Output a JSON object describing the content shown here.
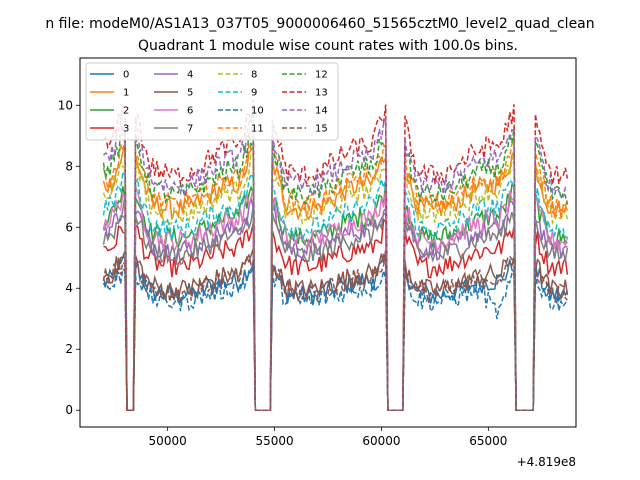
{
  "chart_data": {
    "type": "line",
    "suptitle": "n file: modeM0/AS1A13_037T05_9000006460_51565cztM0_level2_quad_clean",
    "title": "Quadrant 1 module wise count rates with 100.0s bins.",
    "xlabel": "",
    "ylabel": "",
    "x_offset_label": "+4.819e8",
    "xlim": [
      45900,
      69100
    ],
    "ylim": [
      -0.55,
      11.55
    ],
    "x_ticks": [
      50000,
      55000,
      60000,
      65000
    ],
    "x_tick_labels": [
      "50000",
      "55000",
      "60000",
      "65000"
    ],
    "y_ticks": [
      0,
      2,
      4,
      6,
      8,
      10
    ],
    "y_tick_labels": [
      "0",
      "2",
      "4",
      "6",
      "8",
      "10"
    ],
    "grid": false,
    "legend": {
      "position": "top-left",
      "columns": 4
    },
    "gaps": [
      {
        "start": 48050,
        "end": 48450
      },
      {
        "start": 54050,
        "end": 54850
      },
      {
        "start": 60250,
        "end": 61000
      },
      {
        "start": 66250,
        "end": 67150
      }
    ],
    "data_start": 47000,
    "data_end": 68700,
    "bin_seconds": 100,
    "series": [
      {
        "name": "0",
        "color": "#1f77b4",
        "dashed": false,
        "level": 4.0
      },
      {
        "name": "1",
        "color": "#ff7f0e",
        "dashed": false,
        "level": 7.0
      },
      {
        "name": "2",
        "color": "#2ca02c",
        "dashed": false,
        "level": 6.0
      },
      {
        "name": "3",
        "color": "#d62728",
        "dashed": false,
        "level": 5.0
      },
      {
        "name": "4",
        "color": "#9467bd",
        "dashed": false,
        "level": 5.6
      },
      {
        "name": "5",
        "color": "#8c564b",
        "dashed": false,
        "level": 4.2
      },
      {
        "name": "6",
        "color": "#e377c2",
        "dashed": false,
        "level": 5.9
      },
      {
        "name": "7",
        "color": "#7f7f7f",
        "dashed": false,
        "level": 5.4
      },
      {
        "name": "8",
        "color": "#bcbd22",
        "dashed": true,
        "level": 6.8
      },
      {
        "name": "9",
        "color": "#17becf",
        "dashed": true,
        "level": 6.3
      },
      {
        "name": "10",
        "color": "#1f77b4",
        "dashed": true,
        "level": 3.8
      },
      {
        "name": "11",
        "color": "#ff7f0e",
        "dashed": true,
        "level": 7.2
      },
      {
        "name": "12",
        "color": "#2ca02c",
        "dashed": true,
        "level": 7.5
      },
      {
        "name": "13",
        "color": "#d62728",
        "dashed": true,
        "level": 8.2
      },
      {
        "name": "14",
        "color": "#9467bd",
        "dashed": true,
        "level": 7.8
      },
      {
        "name": "15",
        "color": "#8c564b",
        "dashed": true,
        "level": 4.1
      }
    ]
  }
}
